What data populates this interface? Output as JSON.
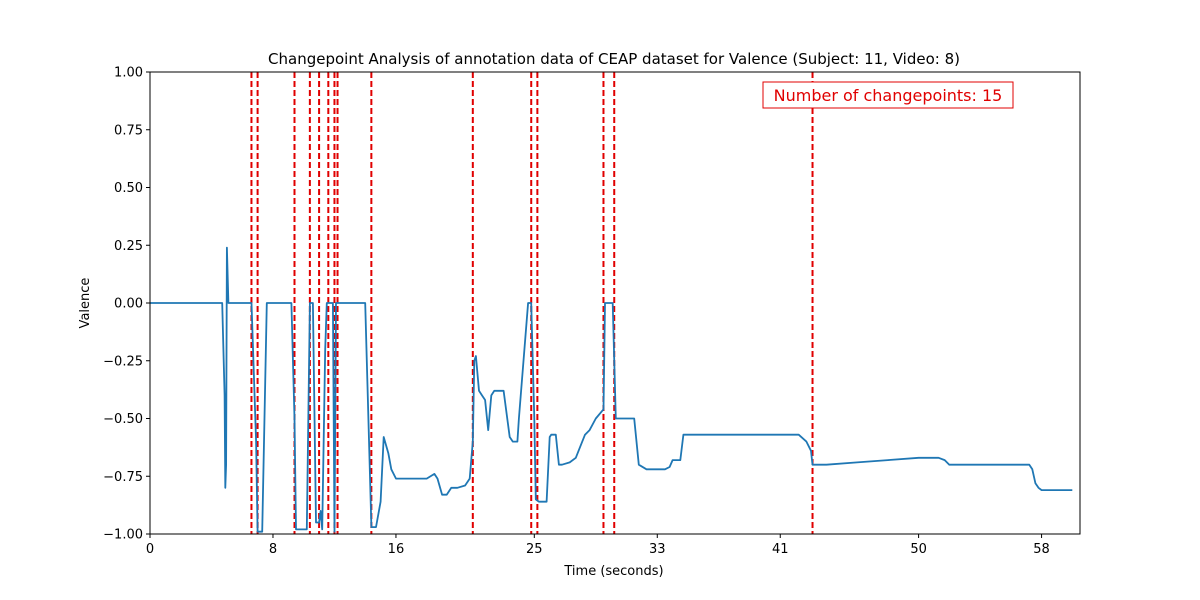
{
  "chart_data": {
    "type": "line",
    "title": "Changepoint Analysis of annotation data of CEAP dataset for Valence (Subject: 11, Video: 8)",
    "xlabel": "Time (seconds)",
    "ylabel": "Valence",
    "xlim": [
      0,
      60.5
    ],
    "ylim": [
      -1.0,
      1.0
    ],
    "x_ticks": [
      0,
      8,
      16,
      25,
      33,
      41,
      50,
      58
    ],
    "x_tick_labels": [
      "0",
      "8",
      "16",
      "25",
      "33",
      "41",
      "50",
      "58"
    ],
    "y_ticks": [
      -1.0,
      -0.75,
      -0.5,
      -0.25,
      0.0,
      0.25,
      0.5,
      0.75,
      1.0
    ],
    "y_tick_labels": [
      "−1.00",
      "−0.75",
      "−0.50",
      "−0.25",
      "0.00",
      "0.25",
      "0.50",
      "0.75",
      "1.00"
    ],
    "grid": false,
    "colors": {
      "series": "#1f77b4",
      "changepoint": "#e00000"
    },
    "series": [
      {
        "x": [
          0,
          4.7,
          4.85,
          4.9,
          4.95,
          5.0,
          5.1,
          5.2,
          5.3,
          5.5,
          6.0,
          6.6,
          6.9,
          7.0,
          7.3,
          7.6,
          8.0,
          9.2,
          9.4,
          9.5,
          9.6,
          10.2,
          10.4,
          10.5,
          10.6,
          10.8,
          11.0,
          11.1,
          11.2,
          11.4,
          11.5,
          11.6,
          11.9,
          12.0,
          12.1,
          12.2,
          12.5,
          13.0,
          14.0,
          14.4,
          14.6,
          14.7,
          15.0,
          15.2,
          15.5,
          15.7,
          16.0,
          16.5,
          17.0,
          18.0,
          18.5,
          18.7,
          19.0,
          19.3,
          19.6,
          20.0,
          20.5,
          20.8,
          21.0,
          21.1,
          21.2,
          21.4,
          21.6,
          21.8,
          22.0,
          22.2,
          22.4,
          22.6,
          23.0,
          23.4,
          23.6,
          23.9,
          24.0,
          24.3,
          24.6,
          24.8,
          25.0,
          25.1,
          25.3,
          25.6,
          25.8,
          26.0,
          26.1,
          26.4,
          26.6,
          26.8,
          27.3,
          27.7,
          28.0,
          28.3,
          28.6,
          29.0,
          29.5,
          29.6,
          29.9,
          30.1,
          30.3,
          30.5,
          31.0,
          31.5,
          31.8,
          32.3,
          33.0,
          33.5,
          33.8,
          34.0,
          34.5,
          34.7,
          35.0,
          36.0,
          37.0,
          38.0,
          39.0,
          40.0,
          41.0,
          41.6,
          42.2,
          42.7,
          43.0,
          43.1,
          44.0,
          46.0,
          48.0,
          50.0,
          51.3,
          51.7,
          52.0,
          53.0,
          55.0,
          57.0,
          57.2,
          57.4,
          57.6,
          57.8,
          58.0,
          59.0,
          60.0
        ],
        "y": [
          0.0,
          0.0,
          -0.4,
          -0.8,
          -0.7,
          0.24,
          0.0,
          0.0,
          0.0,
          0.0,
          0.0,
          0.0,
          -0.6,
          -0.99,
          -0.99,
          0.0,
          0.0,
          0.0,
          -0.5,
          -0.98,
          -0.98,
          -0.98,
          0.0,
          0.0,
          0.0,
          -0.95,
          -0.95,
          -0.9,
          -0.98,
          -0.2,
          0.0,
          0.0,
          0.0,
          -0.99,
          0.0,
          0.0,
          0.0,
          0.0,
          0.0,
          -0.97,
          -0.97,
          -0.97,
          -0.86,
          -0.58,
          -0.65,
          -0.72,
          -0.76,
          -0.76,
          -0.76,
          -0.76,
          -0.74,
          -0.76,
          -0.83,
          -0.83,
          -0.8,
          -0.8,
          -0.79,
          -0.76,
          -0.6,
          -0.25,
          -0.23,
          -0.38,
          -0.4,
          -0.42,
          -0.55,
          -0.4,
          -0.38,
          -0.38,
          -0.38,
          -0.58,
          -0.6,
          -0.6,
          -0.5,
          -0.25,
          0.0,
          0.0,
          -0.5,
          -0.85,
          -0.86,
          -0.86,
          -0.86,
          -0.58,
          -0.57,
          -0.57,
          -0.7,
          -0.7,
          -0.69,
          -0.67,
          -0.62,
          -0.57,
          -0.55,
          -0.5,
          -0.46,
          0.0,
          0.0,
          0.0,
          -0.5,
          -0.5,
          -0.5,
          -0.5,
          -0.7,
          -0.72,
          -0.72,
          -0.72,
          -0.71,
          -0.68,
          -0.68,
          -0.57,
          -0.57,
          -0.57,
          -0.57,
          -0.57,
          -0.57,
          -0.57,
          -0.57,
          -0.57,
          -0.57,
          -0.6,
          -0.64,
          -0.7,
          -0.7,
          -0.69,
          -0.68,
          -0.67,
          -0.67,
          -0.68,
          -0.7,
          -0.7,
          -0.7,
          -0.7,
          -0.7,
          -0.72,
          -0.78,
          -0.8,
          -0.81,
          -0.81,
          -0.81
        ]
      }
    ],
    "changepoints": [
      6.6,
      7.0,
      9.4,
      10.4,
      11.0,
      11.6,
      12.0,
      12.2,
      14.4,
      21.0,
      24.8,
      25.2,
      29.5,
      30.2,
      43.1
    ],
    "annotation": {
      "text": "Number of changepoints: 15",
      "placement": "top-right"
    }
  }
}
